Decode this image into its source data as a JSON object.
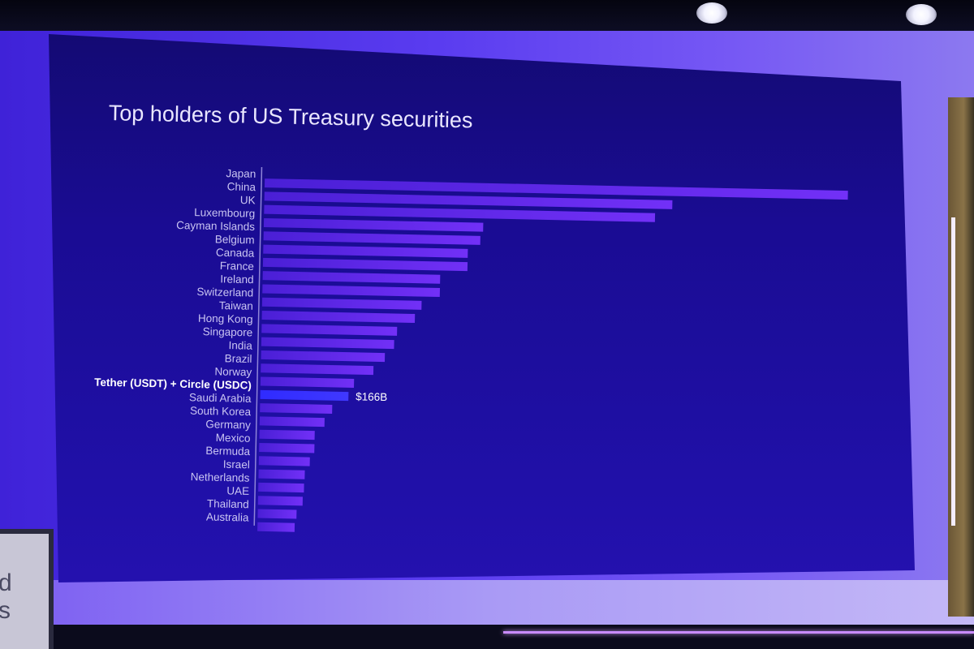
{
  "chart_data": {
    "type": "bar",
    "orientation": "horizontal",
    "title": "Top holders of US Treasury securities",
    "xlabel": "",
    "ylabel": "",
    "xlim": [
      0,
      1100
    ],
    "grid": false,
    "legend": "none",
    "categories": [
      "Japan",
      "China",
      "UK",
      "Luxembourg",
      "Cayman Islands",
      "Belgium",
      "Canada",
      "France",
      "Ireland",
      "Switzerland",
      "Taiwan",
      "Hong Kong",
      "Singapore",
      "India",
      "Brazil",
      "Norway",
      "Tether (USDT) + Circle (USDC)",
      "Saudi Arabia",
      "South Korea",
      "Germany",
      "Mexico",
      "Bermuda",
      "Israel",
      "Netherlands",
      "UAE",
      "Thailand",
      "Australia"
    ],
    "series": [
      {
        "values": [
          1098,
          768,
          736,
          413,
          408,
          385,
          385,
          334,
          334,
          300,
          288,
          255,
          250,
          233,
          212,
          176,
          166,
          136,
          122,
          104,
          104,
          96,
          87,
          86,
          84,
          73,
          70
        ]
      }
    ],
    "highlight": {
      "category": "Tether (USDT) + Circle (USDC)",
      "label": "$166B"
    },
    "colors": {
      "bar": "#6a2cf5",
      "bar_highlight": "#3a2cff",
      "axis": "#8f85d8"
    }
  }
}
